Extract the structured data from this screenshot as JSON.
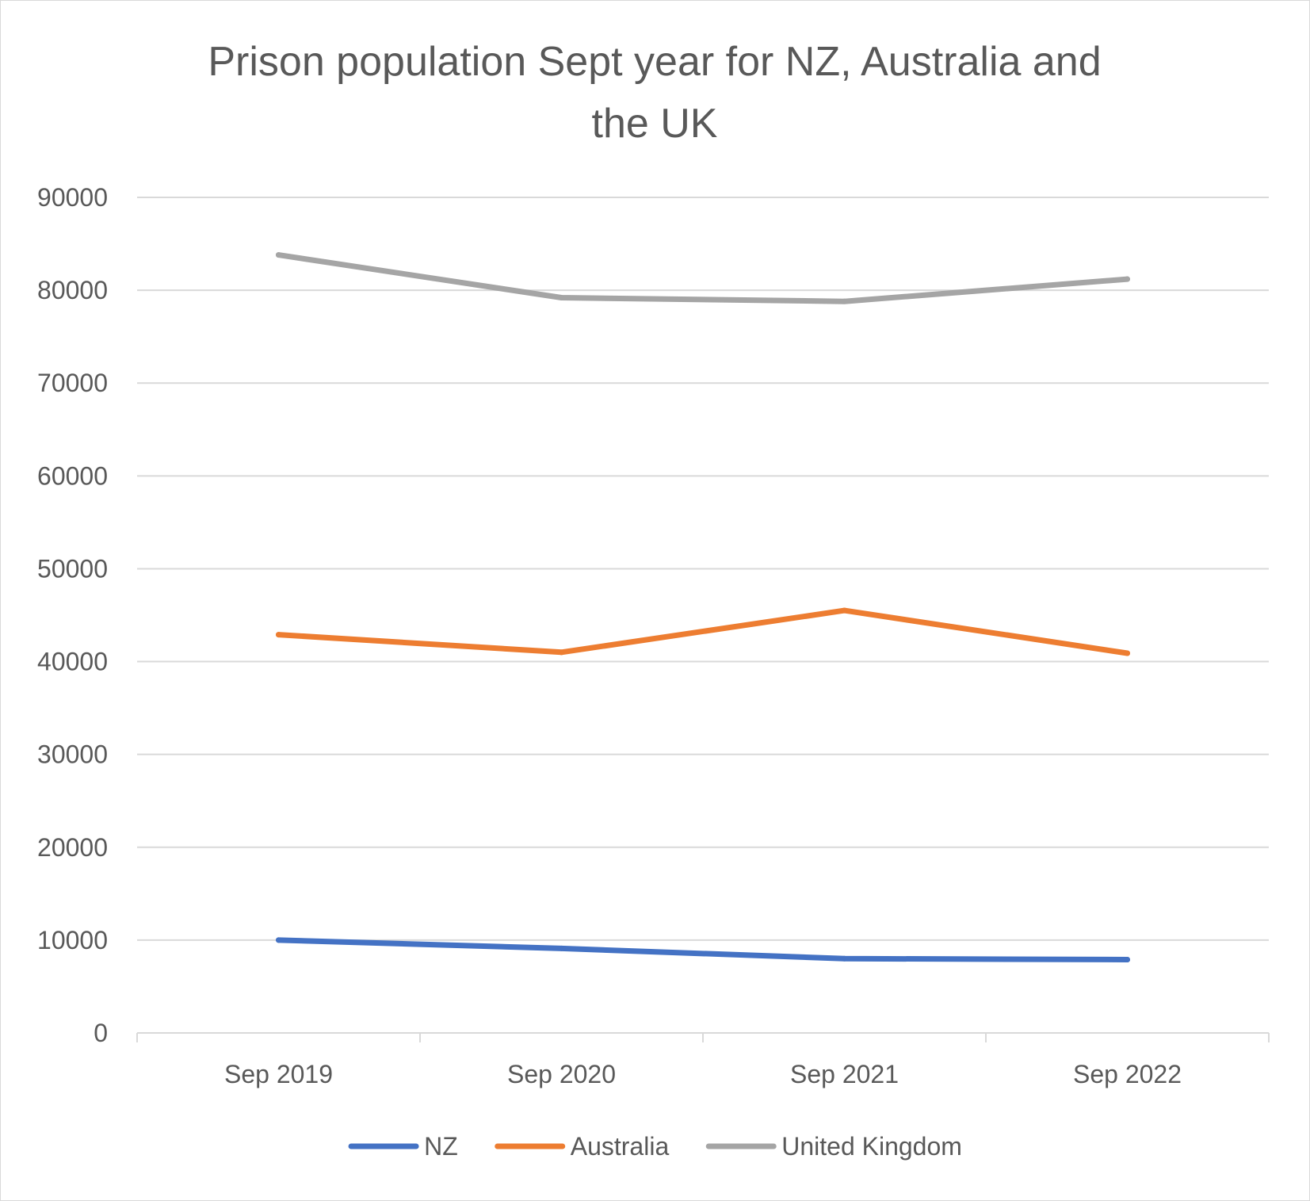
{
  "chart_data": {
    "type": "line",
    "title_lines": [
      "Prison population Sept year for NZ, Australia and",
      "the UK"
    ],
    "categories": [
      "Sep 2019",
      "Sep 2020",
      "Sep 2021",
      "Sep 2022"
    ],
    "ylim": [
      0,
      90000
    ],
    "yticks": [
      0,
      10000,
      20000,
      30000,
      40000,
      50000,
      60000,
      70000,
      80000,
      90000
    ],
    "ytick_labels": [
      "0",
      "10000",
      "20000",
      "30000",
      "40000",
      "50000",
      "60000",
      "70000",
      "80000",
      "90000"
    ],
    "grid": true,
    "legend_position": "bottom",
    "xlabel": "",
    "ylabel": "",
    "series": [
      {
        "name": "NZ",
        "color": "#4472c4",
        "values": [
          10000,
          9100,
          8000,
          7900
        ]
      },
      {
        "name": "Australia",
        "color": "#ed7d31",
        "values": [
          42900,
          41000,
          45500,
          40900
        ]
      },
      {
        "name": "United Kingdom",
        "color": "#a5a5a5",
        "values": [
          83800,
          79200,
          78800,
          81200
        ]
      }
    ]
  }
}
